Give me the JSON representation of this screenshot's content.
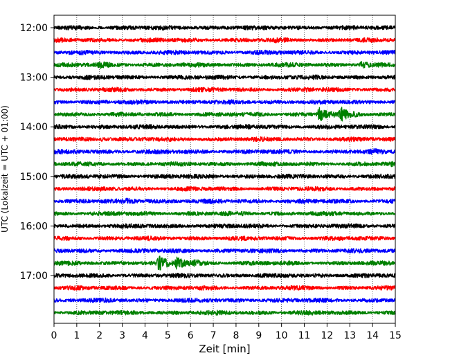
{
  "chart_data": {
    "type": "line",
    "title": "",
    "xlabel": "Zeit  [min]",
    "ylabel": "UTC (Lokalzeit = UTC + 01:00)",
    "xlim": [
      0,
      15
    ],
    "x_ticks": [
      "0",
      "1",
      "2",
      "3",
      "4",
      "5",
      "6",
      "7",
      "8",
      "9",
      "10",
      "11",
      "12",
      "13",
      "14",
      "15"
    ],
    "y_ticks": [
      {
        "row": 0,
        "label": "12:00"
      },
      {
        "row": 4,
        "label": "13:00"
      },
      {
        "row": 8,
        "label": "14:00"
      },
      {
        "row": 12,
        "label": "15:00"
      },
      {
        "row": 16,
        "label": "16:00"
      },
      {
        "row": 20,
        "label": "17:00"
      }
    ],
    "grid": "vertical dotted lines at each minute",
    "row_interval_minutes": 15,
    "row_colors": [
      "#000000",
      "#ff0000",
      "#0000ff",
      "#008000"
    ],
    "traces": [
      {
        "start": "12:00",
        "events": []
      },
      {
        "start": "12:15",
        "events": [
          {
            "t": 9.7,
            "amp": 1.4
          }
        ]
      },
      {
        "start": "12:30",
        "events": [
          {
            "t": 8.8,
            "amp": 1.3
          }
        ]
      },
      {
        "start": "12:45",
        "events": [
          {
            "t": 2.0,
            "amp": 2.0
          },
          {
            "t": 13.5,
            "amp": 2.2
          }
        ]
      },
      {
        "start": "13:00",
        "events": []
      },
      {
        "start": "13:15",
        "events": [
          {
            "t": 11.0,
            "amp": 1.3
          }
        ]
      },
      {
        "start": "13:30",
        "events": []
      },
      {
        "start": "13:45",
        "events": [
          {
            "t": 11.65,
            "amp": 4.8
          },
          {
            "t": 12.6,
            "amp": 4.2
          }
        ]
      },
      {
        "start": "14:00",
        "events": [
          {
            "t": 8.5,
            "amp": 1.3
          }
        ]
      },
      {
        "start": "14:15",
        "events": [
          {
            "t": 2.1,
            "amp": 1.6
          }
        ]
      },
      {
        "start": "14:30",
        "events": [
          {
            "t": 14.0,
            "amp": 1.6
          }
        ]
      },
      {
        "start": "14:45",
        "events": [
          {
            "t": 14.8,
            "amp": 1.4
          }
        ]
      },
      {
        "start": "15:00",
        "events": []
      },
      {
        "start": "15:15",
        "events": []
      },
      {
        "start": "15:30",
        "events": [
          {
            "t": 3.2,
            "amp": 1.7
          },
          {
            "t": 4.1,
            "amp": 1.5
          }
        ]
      },
      {
        "start": "15:45",
        "events": []
      },
      {
        "start": "16:00",
        "events": []
      },
      {
        "start": "16:15",
        "events": []
      },
      {
        "start": "16:30",
        "events": []
      },
      {
        "start": "16:45",
        "events": [
          {
            "t": 3.0,
            "amp": 1.4
          },
          {
            "t": 4.6,
            "amp": 4.5
          },
          {
            "t": 5.4,
            "amp": 4.2
          },
          {
            "t": 6.2,
            "amp": 2.0
          }
        ]
      },
      {
        "start": "17:00",
        "events": []
      },
      {
        "start": "17:15",
        "events": []
      },
      {
        "start": "17:30",
        "events": []
      },
      {
        "start": "17:45",
        "events": []
      }
    ]
  }
}
